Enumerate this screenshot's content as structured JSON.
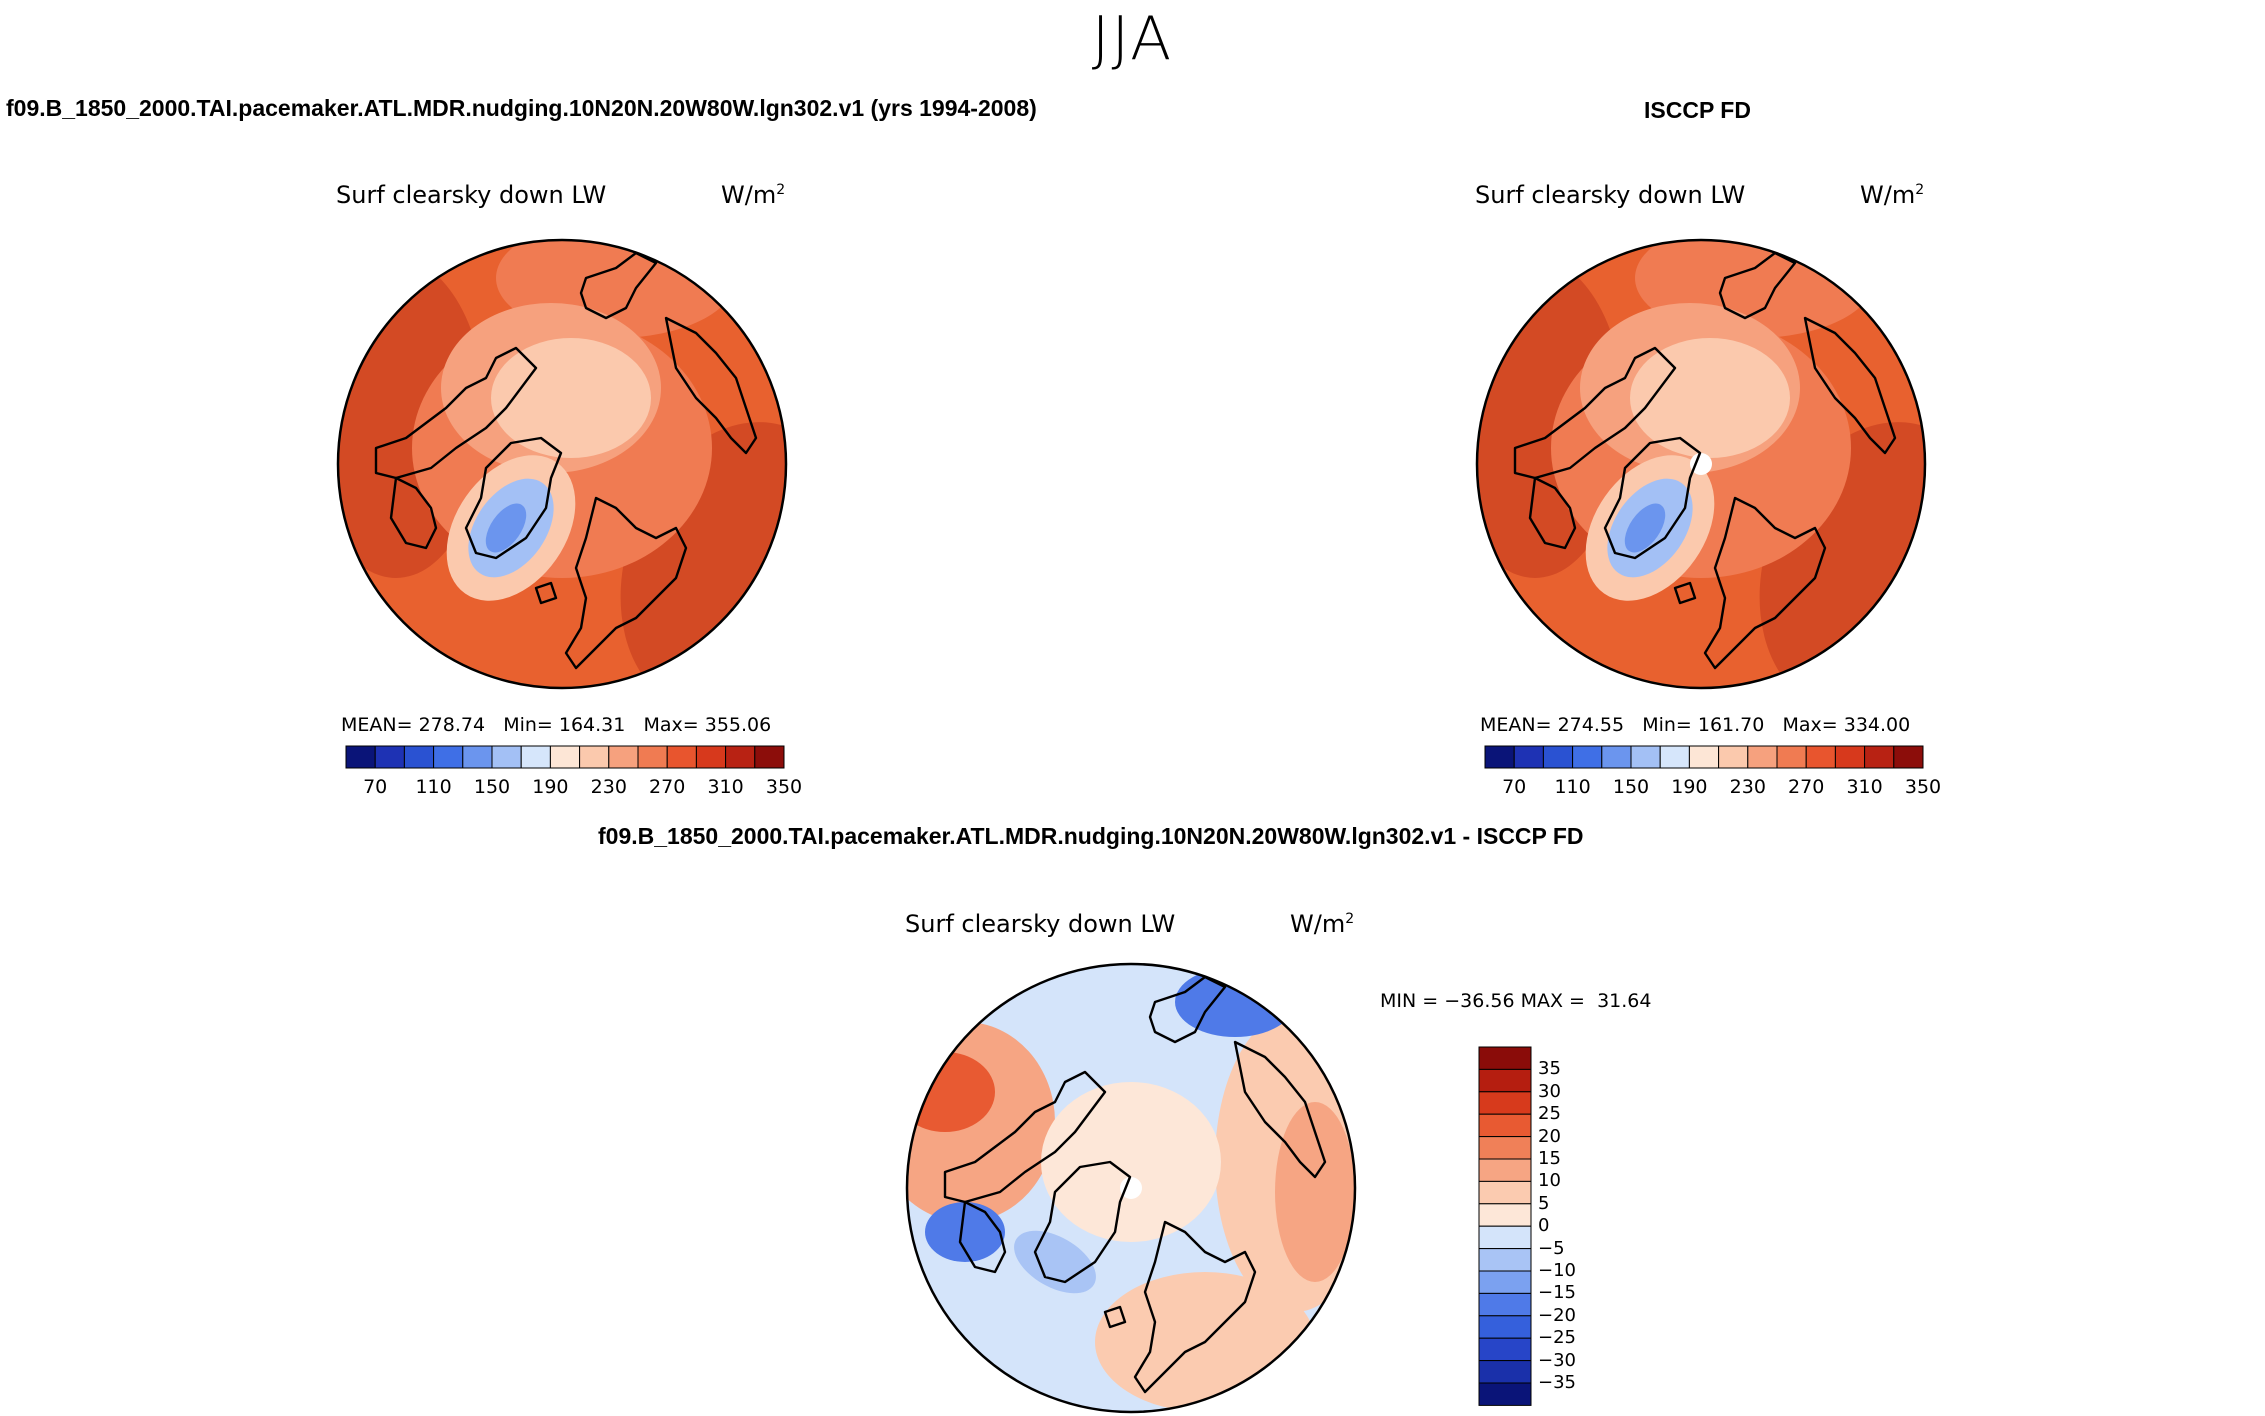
{
  "season": "JJA",
  "colors": {
    "abs_scale": [
      "#0a1478",
      "#1e32b4",
      "#2a52d2",
      "#3f6fe6",
      "#6b95ee",
      "#a3c0f5",
      "#d6e6fb",
      "#fde6d6",
      "#fbc9ad",
      "#f6a17e",
      "#f07b52",
      "#e8552e",
      "#d7391c",
      "#b82213",
      "#8c0d0a"
    ],
    "diff_scale": [
      "#0a1478",
      "#1a30aa",
      "#2745c8",
      "#3560dc",
      "#4f7ae8",
      "#7ba1f0",
      "#a9c4f5",
      "#d4e4fa",
      "#fde7d8",
      "#fbcbb0",
      "#f6a583",
      "#f08058",
      "#e85a32",
      "#d73a1c",
      "#b51e10",
      "#8a0c09"
    ],
    "abs_fill": [
      "#d34a24",
      "#e8612f",
      "#f07b52",
      "#f6a17e",
      "#fbc9ad",
      "#a3c0f5",
      "#6b95ee"
    ],
    "diff_fill": [
      "#d4e4fa",
      "#a9c4f5",
      "#fbcbb0",
      "#f6a583",
      "#e85a32",
      "#4f7ae8",
      "#fde7d8"
    ]
  },
  "panels": [
    {
      "id": "model",
      "title": "f09.B_1850_2000.TAI.pacemaker.ATL.MDR.nudging.10N20N.20W80W.lgn302.v1 (yrs 1994-2008)",
      "variable": "Surf clearsky down LW",
      "units_base": "W/m",
      "units_exp": "2",
      "stats": {
        "mean_label": "MEAN=",
        "mean": "278.74",
        "min_label": "Min=",
        "min": "164.31",
        "max_label": "Max=",
        "max": "355.06"
      },
      "colorbar_ticks": [
        "70",
        "110",
        "150",
        "190",
        "230",
        "270",
        "310",
        "350"
      ]
    },
    {
      "id": "obs",
      "title": "ISCCP FD",
      "variable": "Surf clearsky down LW",
      "units_base": "W/m",
      "units_exp": "2",
      "stats": {
        "mean_label": "MEAN=",
        "mean": "274.55",
        "min_label": "Min=",
        "min": "161.70",
        "max_label": "Max=",
        "max": "334.00"
      },
      "colorbar_ticks": [
        "70",
        "110",
        "150",
        "190",
        "230",
        "270",
        "310",
        "350"
      ]
    }
  ],
  "diff_panel": {
    "title": "f09.B_1850_2000.TAI.pacemaker.ATL.MDR.nudging.10N20N.20W80W.lgn302.v1 - ISCCP FD",
    "variable": "Surf clearsky down LW",
    "units_base": "W/m",
    "units_exp": "2",
    "stats": {
      "min_label": "MIN =",
      "min": "−36.56",
      "max_label": "MAX =",
      "max": "31.64"
    },
    "colorbar_ticks": [
      "35",
      "30",
      "25",
      "20",
      "15",
      "10",
      "5",
      "0",
      "−5",
      "−10",
      "−15",
      "−20",
      "−25",
      "−30",
      "−35"
    ]
  },
  "chart_data": {
    "type": "heatmap",
    "projection": "north polar stereographic",
    "maps": [
      {
        "name": "model",
        "units": "W/m2",
        "mean": 278.74,
        "min": 164.31,
        "max": 355.06,
        "levels": [
          70,
          90,
          110,
          130,
          150,
          170,
          190,
          210,
          230,
          250,
          270,
          290,
          310,
          330,
          350
        ]
      },
      {
        "name": "ISCCP FD",
        "units": "W/m2",
        "mean": 274.55,
        "min": 161.7,
        "max": 334.0,
        "levels": [
          70,
          90,
          110,
          130,
          150,
          170,
          190,
          210,
          230,
          250,
          270,
          290,
          310,
          330,
          350
        ]
      },
      {
        "name": "model - ISCCP FD",
        "units": "W/m2",
        "min": -36.56,
        "max": 31.64,
        "levels": [
          -35,
          -30,
          -25,
          -20,
          -15,
          -10,
          -5,
          0,
          5,
          10,
          15,
          20,
          25,
          30,
          35
        ]
      }
    ]
  }
}
